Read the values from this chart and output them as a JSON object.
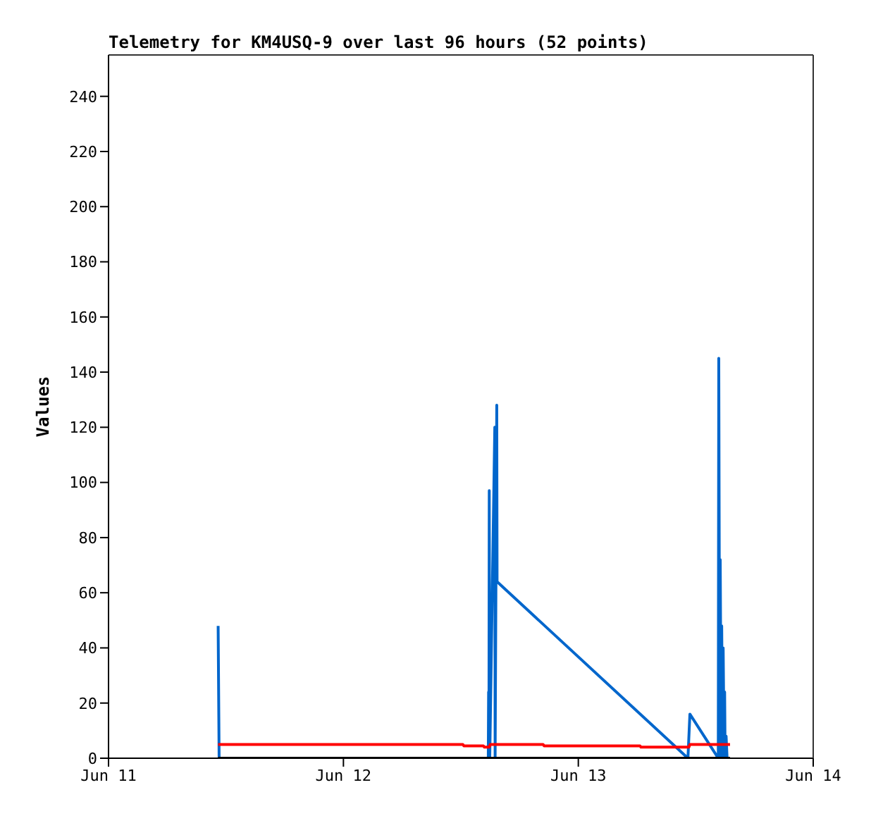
{
  "chart_data": {
    "type": "line",
    "title": "Telemetry for KM4USQ-9 over last 96 hours (52 points)",
    "ylabel": "Values",
    "xlim": [
      "--06-11",
      "--06-14"
    ],
    "xticks": [
      {
        "value": "--06-11",
        "label": "Jun 11"
      },
      {
        "value": "--06-12",
        "label": "Jun 12"
      },
      {
        "value": "--06-13",
        "label": "Jun 13"
      },
      {
        "value": "--06-14",
        "label": "Jun 14"
      }
    ],
    "ylim": [
      0,
      255
    ],
    "yticks": [
      0,
      20,
      40,
      60,
      80,
      100,
      120,
      140,
      160,
      180,
      200,
      220,
      240
    ],
    "grid": false,
    "legend": false,
    "marker": "none",
    "line_style": "solid",
    "series": [
      {
        "color": "#0066cc",
        "x": [
          "--06-11T11:12",
          "--06-11T11:18",
          "--06-12T14:48",
          "--06-12T14:50",
          "--06-12T14:52",
          "--06-12T14:54",
          "--06-12T14:57",
          "--06-12T15:28",
          "--06-12T15:30",
          "--06-12T15:40",
          "--06-12T15:42",
          "--06-13T11:12",
          "--06-13T11:24",
          "--06-13T14:18",
          "--06-13T14:21",
          "--06-13T14:27",
          "--06-13T14:30",
          "--06-13T14:36",
          "--06-13T14:39",
          "--06-13T14:45",
          "--06-13T14:48",
          "--06-13T14:54",
          "--06-13T14:57",
          "--06-13T15:00",
          "--06-13T15:06",
          "--06-13T15:12"
        ],
        "values": [
          48,
          0,
          0,
          24,
          0,
          97,
          0,
          120,
          0,
          128,
          64,
          0,
          16,
          0,
          145,
          0,
          72,
          0,
          48,
          0,
          40,
          0,
          24,
          0,
          8,
          0
        ]
      },
      {
        "color": "#ff0000",
        "x": [
          "--06-11T11:12",
          "--06-12T12:12",
          "--06-12T12:18",
          "--06-12T14:18",
          "--06-12T14:24",
          "--06-12T14:54",
          "--06-12T15:00",
          "--06-12T20:24",
          "--06-12T20:30",
          "--06-13T06:18",
          "--06-13T06:24",
          "--06-13T11:18",
          "--06-13T11:24",
          "--06-13T15:30"
        ],
        "values": [
          5,
          5,
          4.5,
          4.5,
          4,
          4,
          5,
          5,
          4.5,
          4.5,
          4,
          4,
          5,
          5
        ]
      },
      {
        "color": "#000000",
        "x": [
          "--06-11T11:12",
          "--06-13T15:30"
        ],
        "values": [
          0,
          0
        ]
      }
    ]
  }
}
